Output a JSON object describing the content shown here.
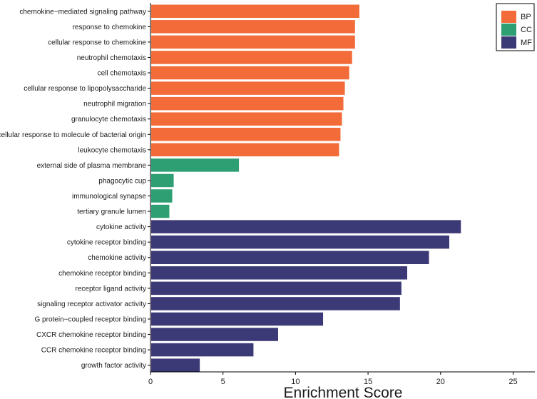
{
  "chart_data": {
    "type": "bar",
    "orientation": "horizontal",
    "title": "",
    "xlabel": "Enrichment Score",
    "ylabel": "",
    "xlim": [
      0,
      26.5
    ],
    "xticks": [
      0,
      5,
      10,
      15,
      20,
      25
    ],
    "grid": false,
    "legend_position": "top-right",
    "groups": [
      {
        "name": "BP",
        "color": "#F26B38"
      },
      {
        "name": "CC",
        "color": "#2E9E73"
      },
      {
        "name": "MF",
        "color": "#3C3977"
      }
    ],
    "categories": [
      "chemokine−mediated signaling pathway",
      "response to chemokine",
      "cellular response to chemokine",
      "neutrophil chemotaxis",
      "cell chemotaxis",
      "cellular response to lipopolysaccharide",
      "neutrophil migration",
      "granulocyte chemotaxis",
      "cellular response to molecule of bacterial origin",
      "leukocyte chemotaxis",
      "external side of plasma membrane",
      "phagocytic cup",
      "immunological synapse",
      "tertiary granule lumen",
      "cytokine activity",
      "cytokine receptor binding",
      "chemokine activity",
      "chemokine receptor binding",
      "receptor ligand activity",
      "signaling receptor activator activity",
      "G protein−coupled receptor binding",
      "CXCR chemokine receptor binding",
      "CCR chemokine receptor binding",
      "growth factor activity"
    ],
    "values": [
      14.4,
      14.1,
      14.1,
      13.9,
      13.7,
      13.4,
      13.3,
      13.2,
      13.1,
      13.0,
      6.1,
      1.6,
      1.5,
      1.3,
      21.4,
      20.6,
      19.2,
      17.7,
      17.3,
      17.2,
      11.9,
      8.8,
      7.1,
      3.4
    ],
    "group_of": [
      "BP",
      "BP",
      "BP",
      "BP",
      "BP",
      "BP",
      "BP",
      "BP",
      "BP",
      "BP",
      "CC",
      "CC",
      "CC",
      "CC",
      "MF",
      "MF",
      "MF",
      "MF",
      "MF",
      "MF",
      "MF",
      "MF",
      "MF",
      "MF"
    ]
  }
}
